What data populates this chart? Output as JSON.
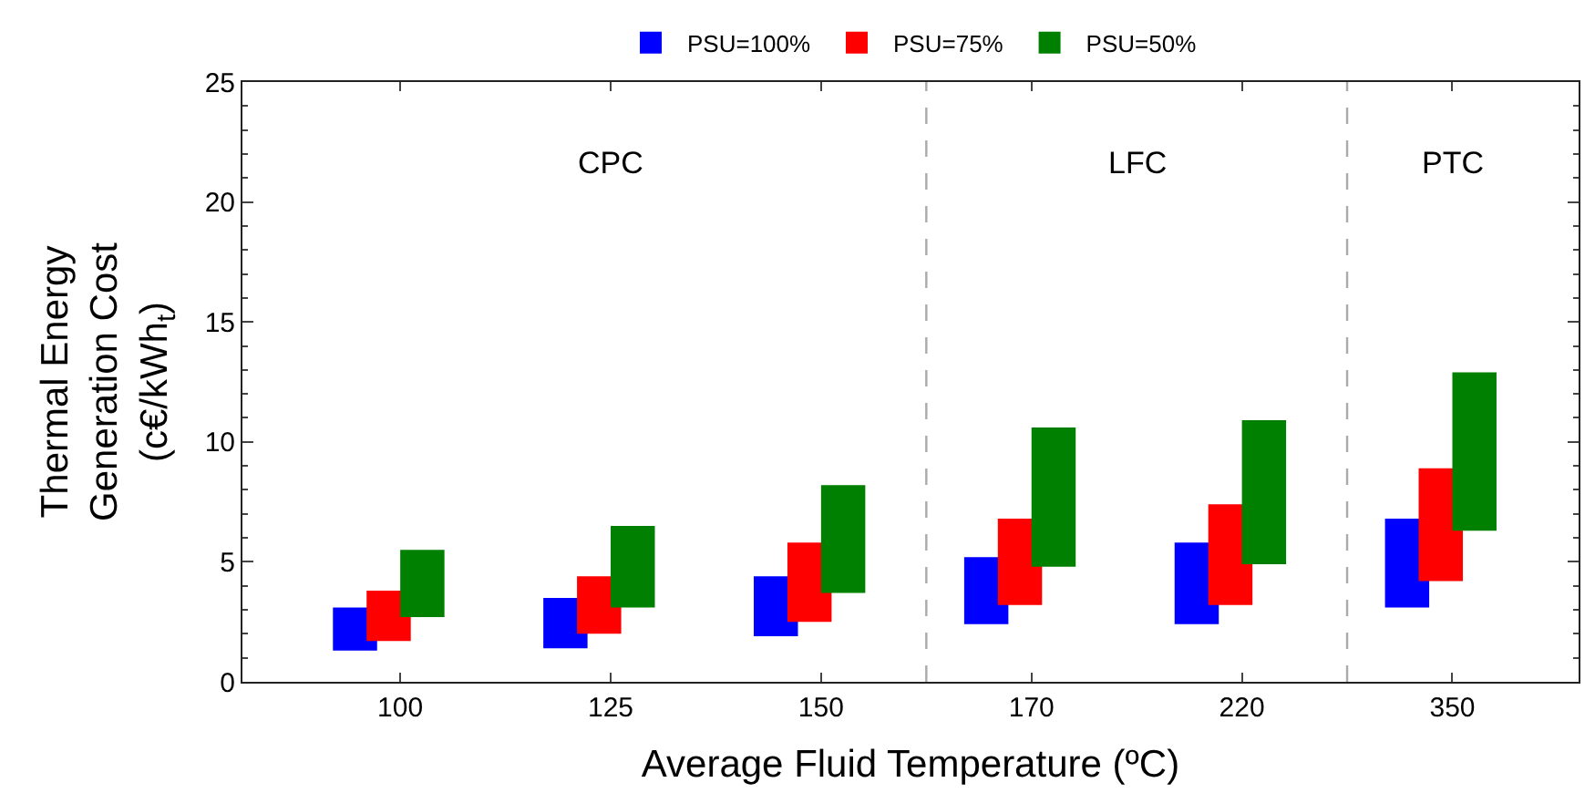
{
  "chart_data": {
    "type": "bar",
    "xlabel": "Average Fluid Temperature (ºC)",
    "ylabel": "Thermal Energy\nGeneration Cost\n(c€/kWh$_{t}$)",
    "categories": [
      "100",
      "125",
      "150",
      "170",
      "220",
      "350"
    ],
    "series": [
      {
        "name": "PSU=100%",
        "color": "#0000ff",
        "base": [
          1.3,
          1.4,
          1.9,
          2.4,
          2.4,
          3.1
        ],
        "values": [
          1.8,
          2.1,
          2.5,
          2.8,
          3.4,
          3.7
        ]
      },
      {
        "name": "PSU=75%",
        "color": "#ff0000",
        "base": [
          1.7,
          2.0,
          2.5,
          3.2,
          3.2,
          4.2
        ],
        "values": [
          2.1,
          2.4,
          3.3,
          3.6,
          4.2,
          4.7
        ]
      },
      {
        "name": "PSU=50%",
        "color": "#008000",
        "base": [
          2.7,
          3.1,
          3.7,
          4.8,
          4.9,
          6.3
        ],
        "values": [
          2.8,
          3.4,
          4.5,
          5.8,
          6.0,
          6.6
        ]
      }
    ],
    "ylim": [
      0,
      25
    ],
    "yticks": [
      0,
      5,
      10,
      15,
      20,
      25
    ],
    "legend": "top",
    "annotations": [
      "CPC",
      "LFC",
      "PTC"
    ]
  }
}
